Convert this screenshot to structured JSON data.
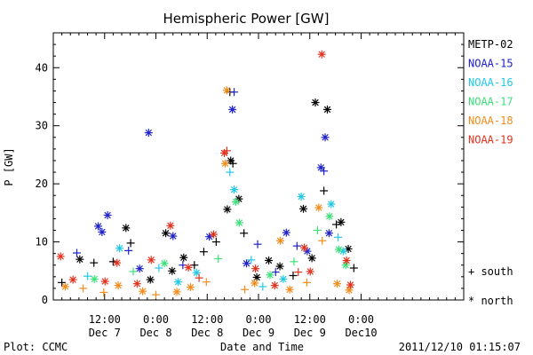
{
  "chart_data": {
    "type": "scatter",
    "title": "Hemispheric Power [GW]",
    "ylabel": "P [GW]",
    "xlabel": "Date and Time",
    "ylim": [
      0,
      46
    ],
    "y_ticks": [
      0,
      10,
      20,
      30,
      40
    ],
    "x_axis": {
      "unit": "hours from Dec 6 12:00",
      "range": [
        0,
        96
      ],
      "tick_labels": [
        {
          "x": 12,
          "time": "12:00",
          "date": "Dec 7"
        },
        {
          "x": 24,
          "time": "0:00",
          "date": "Dec 8"
        },
        {
          "x": 36,
          "time": "12:00",
          "date": "Dec 8"
        },
        {
          "x": 48,
          "time": "0:00",
          "date": "Dec 9"
        },
        {
          "x": 60,
          "time": "12:00",
          "date": "Dec 9"
        },
        {
          "x": 72,
          "time": "0:00",
          "date": "Dec10"
        }
      ]
    },
    "legend_position": "right",
    "symbol_legend": {
      "south": "+ south",
      "north": "* north"
    },
    "series": [
      {
        "name": "METP-02",
        "color": "#000000",
        "points": [
          {
            "x": 18.1,
            "y": 9.8,
            "h": "south"
          },
          {
            "x": 17.0,
            "y": 12.4,
            "h": "north"
          },
          {
            "x": 26.3,
            "y": 11.5,
            "h": "north"
          },
          {
            "x": 38.1,
            "y": 10.0,
            "h": "south"
          },
          {
            "x": 40.7,
            "y": 15.6,
            "h": "north"
          },
          {
            "x": 41.5,
            "y": 24.0,
            "h": "north"
          },
          {
            "x": 42.0,
            "y": 23.5,
            "h": "south"
          },
          {
            "x": 41.3,
            "y": 35.8,
            "h": "south"
          },
          {
            "x": 43.4,
            "y": 17.4,
            "h": "north"
          },
          {
            "x": 44.6,
            "y": 11.5,
            "h": "south"
          },
          {
            "x": 53.0,
            "y": 5.8,
            "h": "north"
          },
          {
            "x": 58.5,
            "y": 15.7,
            "h": "north"
          },
          {
            "x": 61.3,
            "y": 34.0,
            "h": "north"
          },
          {
            "x": 63.3,
            "y": 18.8,
            "h": "south"
          },
          {
            "x": 64.1,
            "y": 32.8,
            "h": "north"
          },
          {
            "x": 66.2,
            "y": 13.0,
            "h": "south"
          },
          {
            "x": 67.3,
            "y": 13.4,
            "h": "north"
          },
          {
            "x": 69.0,
            "y": 8.8,
            "h": "north"
          },
          {
            "x": 70.3,
            "y": 5.5,
            "h": "south"
          },
          {
            "x": 14.0,
            "y": 6.6,
            "h": "south"
          },
          {
            "x": 22.7,
            "y": 3.5,
            "h": "north"
          },
          {
            "x": 30.5,
            "y": 7.3,
            "h": "north"
          },
          {
            "x": 35.2,
            "y": 8.3,
            "h": "south"
          },
          {
            "x": 50.4,
            "y": 6.8,
            "h": "north"
          },
          {
            "x": 56.1,
            "y": 4.2,
            "h": "south"
          },
          {
            "x": 60.5,
            "y": 7.2,
            "h": "north"
          },
          {
            "x": 2.0,
            "y": 3.0,
            "h": "south"
          },
          {
            "x": 6.2,
            "y": 7.0,
            "h": "north"
          },
          {
            "x": 9.5,
            "y": 6.4,
            "h": "south"
          },
          {
            "x": 27.8,
            "y": 5.0,
            "h": "north"
          },
          {
            "x": 33.0,
            "y": 6.0,
            "h": "south"
          },
          {
            "x": 47.6,
            "y": 3.9,
            "h": "north"
          }
        ]
      },
      {
        "name": "NOAA-15",
        "color": "#1e22c8",
        "points": [
          {
            "x": 22.3,
            "y": 28.8,
            "h": "north"
          },
          {
            "x": 41.9,
            "y": 32.8,
            "h": "north"
          },
          {
            "x": 42.3,
            "y": 35.8,
            "h": "south"
          },
          {
            "x": 62.6,
            "y": 22.8,
            "h": "north"
          },
          {
            "x": 63.6,
            "y": 28.0,
            "h": "north"
          },
          {
            "x": 63.3,
            "y": 22.2,
            "h": "south"
          },
          {
            "x": 12.7,
            "y": 14.6,
            "h": "north"
          },
          {
            "x": 10.5,
            "y": 12.7,
            "h": "north"
          },
          {
            "x": 11.4,
            "y": 11.7,
            "h": "north"
          },
          {
            "x": 17.6,
            "y": 8.5,
            "h": "south"
          },
          {
            "x": 28.0,
            "y": 11.0,
            "h": "north"
          },
          {
            "x": 36.5,
            "y": 10.9,
            "h": "north"
          },
          {
            "x": 47.8,
            "y": 9.6,
            "h": "south"
          },
          {
            "x": 54.5,
            "y": 11.6,
            "h": "north"
          },
          {
            "x": 57.0,
            "y": 9.3,
            "h": "south"
          },
          {
            "x": 64.5,
            "y": 11.5,
            "h": "north"
          },
          {
            "x": 5.5,
            "y": 8.1,
            "h": "south"
          },
          {
            "x": 20.2,
            "y": 5.4,
            "h": "north"
          },
          {
            "x": 30.3,
            "y": 6.0,
            "h": "south"
          },
          {
            "x": 45.2,
            "y": 6.3,
            "h": "north"
          },
          {
            "x": 52.0,
            "y": 4.8,
            "h": "south"
          },
          {
            "x": 59.4,
            "y": 8.4,
            "h": "north"
          }
        ]
      },
      {
        "name": "NOAA-16",
        "color": "#22c8e6",
        "points": [
          {
            "x": 42.3,
            "y": 19.0,
            "h": "north"
          },
          {
            "x": 41.3,
            "y": 22.0,
            "h": "south"
          },
          {
            "x": 58.0,
            "y": 17.8,
            "h": "north"
          },
          {
            "x": 65.0,
            "y": 16.5,
            "h": "north"
          },
          {
            "x": 66.6,
            "y": 10.8,
            "h": "south"
          },
          {
            "x": 15.5,
            "y": 8.9,
            "h": "north"
          },
          {
            "x": 24.7,
            "y": 5.5,
            "h": "south"
          },
          {
            "x": 33.5,
            "y": 4.7,
            "h": "north"
          },
          {
            "x": 46.3,
            "y": 6.9,
            "h": "south"
          },
          {
            "x": 53.8,
            "y": 3.6,
            "h": "north"
          },
          {
            "x": 67.8,
            "y": 8.4,
            "h": "north"
          },
          {
            "x": 8.0,
            "y": 4.1,
            "h": "south"
          },
          {
            "x": 29.2,
            "y": 3.1,
            "h": "north"
          },
          {
            "x": 49.0,
            "y": 2.3,
            "h": "south"
          }
        ]
      },
      {
        "name": "NOAA-17",
        "color": "#3ee07a",
        "points": [
          {
            "x": 42.7,
            "y": 16.9,
            "h": "north"
          },
          {
            "x": 43.5,
            "y": 13.3,
            "h": "north"
          },
          {
            "x": 61.8,
            "y": 12.0,
            "h": "south"
          },
          {
            "x": 64.6,
            "y": 14.4,
            "h": "north"
          },
          {
            "x": 66.8,
            "y": 8.7,
            "h": "north"
          },
          {
            "x": 38.6,
            "y": 7.1,
            "h": "south"
          },
          {
            "x": 26.0,
            "y": 6.3,
            "h": "north"
          },
          {
            "x": 18.7,
            "y": 4.9,
            "h": "south"
          },
          {
            "x": 9.6,
            "y": 3.6,
            "h": "north"
          },
          {
            "x": 50.7,
            "y": 4.3,
            "h": "north"
          },
          {
            "x": 56.3,
            "y": 6.6,
            "h": "south"
          },
          {
            "x": 68.4,
            "y": 6.0,
            "h": "north"
          }
        ]
      },
      {
        "name": "NOAA-18",
        "color": "#f08c1e",
        "points": [
          {
            "x": 40.6,
            "y": 36.1,
            "h": "north"
          },
          {
            "x": 40.2,
            "y": 23.5,
            "h": "north"
          },
          {
            "x": 62.1,
            "y": 15.9,
            "h": "north"
          },
          {
            "x": 62.9,
            "y": 10.2,
            "h": "south"
          },
          {
            "x": 66.4,
            "y": 2.8,
            "h": "north"
          },
          {
            "x": 53.1,
            "y": 10.2,
            "h": "north"
          },
          {
            "x": 11.8,
            "y": 1.3,
            "h": "south"
          },
          {
            "x": 20.9,
            "y": 1.5,
            "h": "north"
          },
          {
            "x": 32.1,
            "y": 2.2,
            "h": "north"
          },
          {
            "x": 44.8,
            "y": 1.8,
            "h": "south"
          },
          {
            "x": 55.3,
            "y": 1.8,
            "h": "north"
          },
          {
            "x": 2.8,
            "y": 2.3,
            "h": "north"
          },
          {
            "x": 7.0,
            "y": 2.0,
            "h": "south"
          },
          {
            "x": 15.2,
            "y": 2.5,
            "h": "north"
          },
          {
            "x": 24.0,
            "y": 0.9,
            "h": "south"
          },
          {
            "x": 28.9,
            "y": 1.4,
            "h": "north"
          },
          {
            "x": 35.8,
            "y": 3.1,
            "h": "south"
          },
          {
            "x": 47.1,
            "y": 2.9,
            "h": "north"
          },
          {
            "x": 59.3,
            "y": 3.0,
            "h": "south"
          },
          {
            "x": 69.2,
            "y": 1.7,
            "h": "north"
          }
        ]
      },
      {
        "name": "NOAA-19",
        "color": "#e0321e",
        "points": [
          {
            "x": 62.8,
            "y": 42.3,
            "h": "north"
          },
          {
            "x": 40.0,
            "y": 25.3,
            "h": "north"
          },
          {
            "x": 40.6,
            "y": 25.7,
            "h": "south"
          },
          {
            "x": 27.4,
            "y": 12.8,
            "h": "north"
          },
          {
            "x": 37.5,
            "y": 11.3,
            "h": "north"
          },
          {
            "x": 58.7,
            "y": 9.0,
            "h": "north"
          },
          {
            "x": 68.6,
            "y": 6.8,
            "h": "north"
          },
          {
            "x": 69.5,
            "y": 2.6,
            "h": "north"
          },
          {
            "x": 1.7,
            "y": 7.5,
            "h": "north"
          },
          {
            "x": 14.9,
            "y": 6.4,
            "h": "north"
          },
          {
            "x": 22.9,
            "y": 6.9,
            "h": "north"
          },
          {
            "x": 31.6,
            "y": 5.6,
            "h": "north"
          },
          {
            "x": 47.3,
            "y": 5.4,
            "h": "north"
          },
          {
            "x": 60.1,
            "y": 4.9,
            "h": "north"
          },
          {
            "x": 4.6,
            "y": 3.5,
            "h": "north"
          },
          {
            "x": 12.1,
            "y": 3.2,
            "h": "north"
          },
          {
            "x": 19.6,
            "y": 2.8,
            "h": "north"
          },
          {
            "x": 34.1,
            "y": 3.8,
            "h": "south"
          },
          {
            "x": 51.8,
            "y": 2.5,
            "h": "north"
          },
          {
            "x": 57.3,
            "y": 4.8,
            "h": "south"
          }
        ]
      }
    ]
  },
  "footer": {
    "left": "Plot: CCMC",
    "center": "Date and Time",
    "right": "2011/12/10 01:15:07"
  }
}
